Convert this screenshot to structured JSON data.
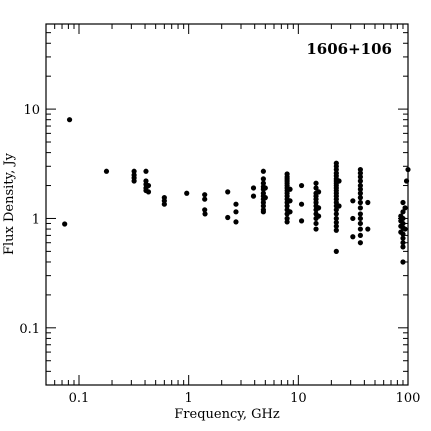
{
  "chart_data": {
    "type": "scatter",
    "title": "1606+106",
    "xlabel": "Frequency, GHz",
    "ylabel": "Flux Density, Jy",
    "x_scale": "log",
    "y_scale": "log",
    "xlim": [
      0.05,
      100
    ],
    "ylim": [
      0.03,
      60
    ],
    "x_ticks": [
      0.1,
      1,
      10,
      100
    ],
    "x_tick_labels": [
      "0.1",
      "1",
      "10",
      "100"
    ],
    "y_ticks": [
      0.1,
      1,
      10
    ],
    "y_tick_labels": [
      "0.1",
      "1",
      "10"
    ],
    "grid": false,
    "marker_color": "#000000",
    "points": [
      [
        0.074,
        0.89
      ],
      [
        0.082,
        8.0
      ],
      [
        0.178,
        2.7
      ],
      [
        0.318,
        2.7
      ],
      [
        0.318,
        2.5
      ],
      [
        0.318,
        2.35
      ],
      [
        0.318,
        2.2
      ],
      [
        0.408,
        2.7
      ],
      [
        0.408,
        2.2
      ],
      [
        0.408,
        2.05
      ],
      [
        0.408,
        1.9
      ],
      [
        0.408,
        1.8
      ],
      [
        0.43,
        2.0
      ],
      [
        0.43,
        1.75
      ],
      [
        0.6,
        1.55
      ],
      [
        0.6,
        1.45
      ],
      [
        0.6,
        1.35
      ],
      [
        0.96,
        1.7
      ],
      [
        1.4,
        1.65
      ],
      [
        1.4,
        1.5
      ],
      [
        1.4,
        1.2
      ],
      [
        1.41,
        1.1
      ],
      [
        2.27,
        1.75
      ],
      [
        2.27,
        1.02
      ],
      [
        2.7,
        1.35
      ],
      [
        2.7,
        1.15
      ],
      [
        2.7,
        0.93
      ],
      [
        3.9,
        1.9
      ],
      [
        3.9,
        1.6
      ],
      [
        4.8,
        2.7
      ],
      [
        4.8,
        2.3
      ],
      [
        4.8,
        2.1
      ],
      [
        4.8,
        1.95
      ],
      [
        4.8,
        1.85
      ],
      [
        4.8,
        1.7
      ],
      [
        4.8,
        1.6
      ],
      [
        4.8,
        1.5
      ],
      [
        4.8,
        1.4
      ],
      [
        4.8,
        1.3
      ],
      [
        4.8,
        1.2
      ],
      [
        4.8,
        1.15
      ],
      [
        5.0,
        1.9
      ],
      [
        5.0,
        1.55
      ],
      [
        7.9,
        2.55
      ],
      [
        7.9,
        2.4
      ],
      [
        7.9,
        2.3
      ],
      [
        7.9,
        2.2
      ],
      [
        7.9,
        2.1
      ],
      [
        7.9,
        2.0
      ],
      [
        7.9,
        1.9
      ],
      [
        7.9,
        1.8
      ],
      [
        7.9,
        1.7
      ],
      [
        7.9,
        1.6
      ],
      [
        7.9,
        1.5
      ],
      [
        7.9,
        1.4
      ],
      [
        7.9,
        1.3
      ],
      [
        7.9,
        1.2
      ],
      [
        7.9,
        1.1
      ],
      [
        7.9,
        1.0
      ],
      [
        7.9,
        0.93
      ],
      [
        8.4,
        1.85
      ],
      [
        8.4,
        1.45
      ],
      [
        8.4,
        1.15
      ],
      [
        10.7,
        2.0
      ],
      [
        10.7,
        1.35
      ],
      [
        10.7,
        0.95
      ],
      [
        14.5,
        2.1
      ],
      [
        14.5,
        1.9
      ],
      [
        14.5,
        1.7
      ],
      [
        14.5,
        1.6
      ],
      [
        14.5,
        1.5
      ],
      [
        14.5,
        1.4
      ],
      [
        14.5,
        1.3
      ],
      [
        14.5,
        1.2
      ],
      [
        14.5,
        1.1
      ],
      [
        14.5,
        1.0
      ],
      [
        14.5,
        0.9
      ],
      [
        14.5,
        0.8
      ],
      [
        15.3,
        1.75
      ],
      [
        15.3,
        1.25
      ],
      [
        15.3,
        1.05
      ],
      [
        22.2,
        3.2
      ],
      [
        22.2,
        3.0
      ],
      [
        22.2,
        2.8
      ],
      [
        22.2,
        2.6
      ],
      [
        22.2,
        2.45
      ],
      [
        22.2,
        2.3
      ],
      [
        22.2,
        2.2
      ],
      [
        22.2,
        2.1
      ],
      [
        22.2,
        2.0
      ],
      [
        22.2,
        1.9
      ],
      [
        22.2,
        1.8
      ],
      [
        22.2,
        1.7
      ],
      [
        22.2,
        1.6
      ],
      [
        22.2,
        1.5
      ],
      [
        22.2,
        1.4
      ],
      [
        22.2,
        1.3
      ],
      [
        22.2,
        1.2
      ],
      [
        22.2,
        1.1
      ],
      [
        22.2,
        1.0
      ],
      [
        22.2,
        0.92
      ],
      [
        22.2,
        0.85
      ],
      [
        22.2,
        0.78
      ],
      [
        22.2,
        0.5
      ],
      [
        23.5,
        2.2
      ],
      [
        23.5,
        1.3
      ],
      [
        31.4,
        1.45
      ],
      [
        31.4,
        1.0
      ],
      [
        31.4,
        0.68
      ],
      [
        36.8,
        2.8
      ],
      [
        36.8,
        2.6
      ],
      [
        36.8,
        2.4
      ],
      [
        36.8,
        2.2
      ],
      [
        36.8,
        2.0
      ],
      [
        36.8,
        1.85
      ],
      [
        36.8,
        1.7
      ],
      [
        36.8,
        1.55
      ],
      [
        36.8,
        1.4
      ],
      [
        36.8,
        1.25
      ],
      [
        36.8,
        1.1
      ],
      [
        36.8,
        1.0
      ],
      [
        36.8,
        0.9
      ],
      [
        36.8,
        0.8
      ],
      [
        36.8,
        0.7
      ],
      [
        36.8,
        0.6
      ],
      [
        43.0,
        1.4
      ],
      [
        43.0,
        0.8
      ],
      [
        86.0,
        1.05
      ],
      [
        86.0,
        0.95
      ],
      [
        86.0,
        0.85
      ],
      [
        86.0,
        0.75
      ],
      [
        90.0,
        1.4
      ],
      [
        90.0,
        1.15
      ],
      [
        90.0,
        1.0
      ],
      [
        90.0,
        0.9
      ],
      [
        90.0,
        0.82
      ],
      [
        90.0,
        0.72
      ],
      [
        90.0,
        0.66
      ],
      [
        90.0,
        0.6
      ],
      [
        90.0,
        0.55
      ],
      [
        90.0,
        0.4
      ],
      [
        94.0,
        1.25
      ],
      [
        94.0,
        0.8
      ],
      [
        97.0,
        2.2
      ],
      [
        100.0,
        2.8
      ]
    ]
  }
}
